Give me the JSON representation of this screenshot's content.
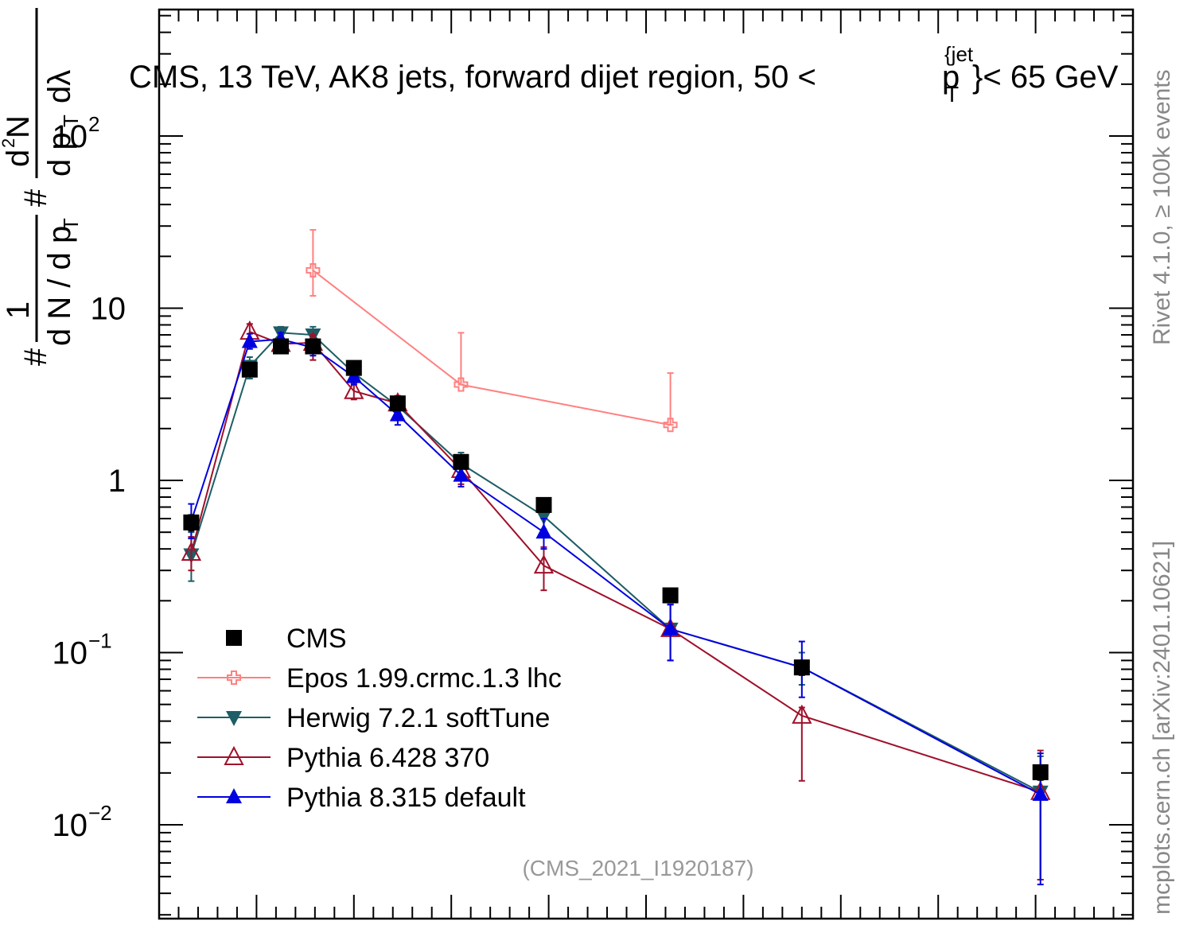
{
  "chart_data": {
    "type": "scatter",
    "title": "CMS, 13 TeV, AK8 jets, forward dijet region, 50 <p_T^{jet}< 65 GeV",
    "title_parts": {
      "pre": "CMS, 13 TeV, AK8 jets, forward dijet region, 50 <",
      "p": "p",
      "sub": "T",
      "sup": "{jet",
      "post": "}< 65 GeV"
    },
    "ylabel": {
      "prefix": "#",
      "frac_num": "1",
      "frac_den": "d N / d p",
      "frac_den_sub": "T",
      "hash": "#",
      "d2_num": "d",
      "d2_num_sup": "2",
      "d2_num_rest": "N",
      "d2_den": "d p",
      "d2_den_sub": "T",
      "d2_den_rest": " dλ"
    },
    "right_label_top": "Rivet 4.1.0, ≥ 100k events",
    "right_label_bottom": "mcplots.cern.ch [arXiv:2401.10621]",
    "watermark": "(CMS_2021_I1920187)",
    "y_scale": "log",
    "ylim": [
      0.003,
      650
    ],
    "xlim": [
      0,
      1
    ],
    "y_tick_labels": [
      {
        "value": 1,
        "text": "1"
      },
      {
        "value": 10,
        "text": "10"
      }
    ],
    "y_power_labels": [
      {
        "value": 100,
        "base": "10",
        "exp": "2"
      },
      {
        "value": 0.1,
        "base": "10",
        "exp": "−1"
      },
      {
        "value": 0.01,
        "base": "10",
        "exp": "−2"
      }
    ],
    "legend_position": "bottom-left",
    "series": [
      {
        "name": "CMS",
        "color": "#000000",
        "marker": "square",
        "line": false,
        "x": [
          0.033,
          0.093,
          0.125,
          0.158,
          0.2,
          0.245,
          0.31,
          0.395,
          0.525,
          0.66,
          0.905
        ],
        "y": [
          0.57,
          4.4,
          6.0,
          6.0,
          4.5,
          2.8,
          1.28,
          0.72,
          0.215,
          0.082,
          0.0202
        ],
        "err": [
          0.06,
          0.35,
          0.4,
          0.4,
          0.3,
          0.2,
          0.1,
          0.06,
          0.02,
          0.008,
          0.002
        ]
      },
      {
        "name": "Epos 1.99.crmc.1.3 lhc",
        "color": "#ff8080",
        "marker": "open-cross",
        "line": true,
        "x": [
          0.158,
          0.31,
          0.525
        ],
        "y": [
          16.6,
          3.6,
          2.1
        ],
        "yerr_low": [
          11.8,
          3.6,
          2.1
        ],
        "yerr_high": [
          28.5,
          7.2,
          4.2
        ]
      },
      {
        "name": "Herwig 7.2.1 softTune",
        "color": "#1e5d66",
        "marker": "down-triangle",
        "line": true,
        "x": [
          0.033,
          0.093,
          0.125,
          0.158,
          0.2,
          0.245,
          0.31,
          0.395,
          0.525,
          0.66,
          0.905
        ],
        "y": [
          0.37,
          4.6,
          7.2,
          7.0,
          4.2,
          2.7,
          1.25,
          0.62,
          0.137,
          0.082,
          0.0155
        ],
        "yerr_low": [
          0.26,
          3.9,
          6.6,
          6.2,
          3.8,
          2.4,
          1.05,
          0.52,
          0.09,
          0.065,
          0.0048
        ],
        "yerr_high": [
          0.5,
          5.2,
          7.8,
          7.8,
          4.6,
          3.0,
          1.45,
          0.72,
          0.19,
          0.1,
          0.025
        ]
      },
      {
        "name": "Pythia 6.428 370",
        "color": "#a0102a",
        "marker": "open-up-triangle",
        "line": true,
        "x": [
          0.033,
          0.093,
          0.125,
          0.158,
          0.2,
          0.245,
          0.31,
          0.395,
          0.525,
          0.66,
          0.905
        ],
        "y": [
          0.38,
          7.3,
          6.2,
          6.3,
          3.3,
          2.8,
          1.15,
          0.32,
          0.137,
          0.043,
          0.0155
        ],
        "yerr_low": [
          0.3,
          6.6,
          5.6,
          5.0,
          2.95,
          2.5,
          0.95,
          0.23,
          0.09,
          0.018,
          0.0048
        ],
        "yerr_high": [
          0.47,
          8.1,
          6.8,
          7.0,
          3.65,
          3.1,
          1.35,
          0.41,
          0.19,
          0.048,
          0.027
        ]
      },
      {
        "name": "Pythia 8.315 default",
        "color": "#0000e0",
        "marker": "up-triangle",
        "line": true,
        "x": [
          0.033,
          0.093,
          0.125,
          0.158,
          0.2,
          0.245,
          0.31,
          0.395,
          0.525,
          0.66,
          0.905
        ],
        "y": [
          0.58,
          6.4,
          6.6,
          5.9,
          4.0,
          2.4,
          1.07,
          0.5,
          0.137,
          0.082,
          0.015
        ],
        "yerr_low": [
          0.46,
          5.8,
          6.0,
          5.3,
          3.6,
          2.1,
          0.92,
          0.4,
          0.09,
          0.055,
          0.0045
        ],
        "yerr_high": [
          0.73,
          7.1,
          7.2,
          6.5,
          4.4,
          2.7,
          1.25,
          0.6,
          0.19,
          0.116,
          0.026
        ]
      }
    ]
  }
}
